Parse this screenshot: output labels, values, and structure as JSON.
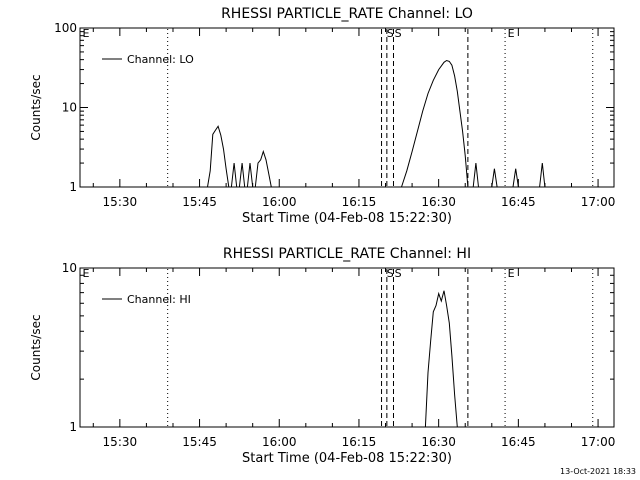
{
  "chart_data": [
    {
      "type": "line",
      "title": "RHESSI PARTICLE_RATE Channel: LO",
      "xlabel": "Start Time (04-Feb-08 15:22:30)",
      "ylabel": "Counts/sec",
      "y_scale": "log",
      "ylim": [
        1,
        100
      ],
      "ytick_labels": [
        "1",
        "10",
        "100"
      ],
      "xlim": [
        "15:22:30",
        "17:03:00"
      ],
      "xtick_labels": [
        "15:30",
        "15:45",
        "16:00",
        "16:15",
        "16:30",
        "16:45",
        "17:00"
      ],
      "grid": false,
      "legend": {
        "placement": "top-left",
        "label": "Channel: LO"
      },
      "annotations": [
        {
          "label": "E",
          "time": "15:22:30"
        },
        {
          "label": "S",
          "time": "16:19:45"
        },
        {
          "label": "S",
          "time": "16:21:15"
        },
        {
          "label": "E",
          "time": "16:42:30"
        }
      ],
      "vertical_markers": [
        {
          "style": "dotted",
          "time": "15:39:00"
        },
        {
          "style": "dashed",
          "time": "16:19:15"
        },
        {
          "style": "dashed",
          "time": "16:20:15"
        },
        {
          "style": "dashed",
          "time": "16:21:30"
        },
        {
          "style": "dashed",
          "time": "16:35:30"
        },
        {
          "style": "dotted",
          "time": "16:42:30"
        },
        {
          "style": "dotted",
          "time": "16:59:00"
        }
      ],
      "series": [
        {
          "name": "Channel: LO",
          "segments": [
            {
              "x": [
                "15:46:30",
                "15:47:00",
                "15:47:30",
                "15:48:00",
                "15:48:30",
                "15:49:00",
                "15:49:30",
                "15:50:00",
                "15:50:30"
              ],
              "y": [
                1,
                1.6,
                4.6,
                5.2,
                5.8,
                4.5,
                3,
                1.7,
                1
              ]
            },
            {
              "x": [
                "15:51:00",
                "15:51:30",
                "15:52:00"
              ],
              "y": [
                1,
                2,
                1
              ]
            },
            {
              "x": [
                "15:52:30",
                "15:53:00",
                "15:53:30"
              ],
              "y": [
                1,
                2,
                1
              ]
            },
            {
              "x": [
                "15:54:00",
                "15:54:30",
                "15:55:00"
              ],
              "y": [
                1,
                2,
                1
              ]
            },
            {
              "x": [
                "15:55:30",
                "15:56:00",
                "15:56:30",
                "15:57:00",
                "15:57:30",
                "15:58:00",
                "15:58:30"
              ],
              "y": [
                1,
                2,
                2.2,
                2.8,
                2.2,
                1.5,
                1
              ]
            },
            {
              "x": [
                "16:23:00",
                "16:24:00",
                "16:25:00",
                "16:26:00",
                "16:27:00",
                "16:28:00",
                "16:29:00",
                "16:30:00",
                "16:31:00",
                "16:31:30",
                "16:32:00",
                "16:32:30",
                "16:33:00",
                "16:33:30",
                "16:34:00",
                "16:34:30",
                "16:35:00",
                "16:35:30"
              ],
              "y": [
                1,
                1.6,
                2.8,
                5,
                9,
                15,
                22,
                30,
                37,
                39,
                38,
                34,
                25,
                16,
                9,
                5,
                2.5,
                1
              ]
            },
            {
              "x": [
                "16:36:30",
                "16:37:00",
                "16:37:30"
              ],
              "y": [
                1,
                2,
                1
              ]
            },
            {
              "x": [
                "16:40:00",
                "16:40:30",
                "16:41:00"
              ],
              "y": [
                1,
                1.7,
                1
              ]
            },
            {
              "x": [
                "16:44:00",
                "16:44:30",
                "16:45:00"
              ],
              "y": [
                1,
                1.7,
                1
              ]
            },
            {
              "x": [
                "16:49:00",
                "16:49:30",
                "16:50:00"
              ],
              "y": [
                1,
                2,
                1
              ]
            }
          ]
        }
      ]
    },
    {
      "type": "line",
      "title": "RHESSI PARTICLE_RATE Channel: HI",
      "xlabel": "Start Time (04-Feb-08 15:22:30)",
      "ylabel": "Counts/sec",
      "y_scale": "log",
      "ylim": [
        1,
        10
      ],
      "ytick_labels": [
        "1",
        "10"
      ],
      "xlim": [
        "15:22:30",
        "17:03:00"
      ],
      "xtick_labels": [
        "15:30",
        "15:45",
        "16:00",
        "16:15",
        "16:30",
        "16:45",
        "17:00"
      ],
      "grid": false,
      "legend": {
        "placement": "top-left",
        "label": "Channel: HI"
      },
      "annotations": [
        {
          "label": "E",
          "time": "15:22:30"
        },
        {
          "label": "S",
          "time": "16:19:45"
        },
        {
          "label": "S",
          "time": "16:21:15"
        },
        {
          "label": "E",
          "time": "16:42:30"
        }
      ],
      "vertical_markers": [
        {
          "style": "dotted",
          "time": "15:39:00"
        },
        {
          "style": "dashed",
          "time": "16:19:15"
        },
        {
          "style": "dashed",
          "time": "16:20:15"
        },
        {
          "style": "dashed",
          "time": "16:21:30"
        },
        {
          "style": "dashed",
          "time": "16:35:30"
        },
        {
          "style": "dotted",
          "time": "16:42:30"
        },
        {
          "style": "dotted",
          "time": "16:59:00"
        }
      ],
      "series": [
        {
          "name": "Channel: HI",
          "segments": [
            {
              "x": [
                "16:27:30",
                "16:28:00",
                "16:28:30",
                "16:29:00",
                "16:29:30",
                "16:30:00",
                "16:30:30",
                "16:31:00",
                "16:31:30",
                "16:32:00",
                "16:32:30",
                "16:33:00",
                "16:33:30"
              ],
              "y": [
                1,
                2.2,
                3.5,
                5.3,
                5.8,
                6.9,
                6.2,
                7.2,
                5.8,
                4.5,
                2.8,
                1.6,
                1
              ]
            }
          ]
        }
      ]
    }
  ],
  "footer": {
    "timestamp": "13-Oct-2021 18:33"
  }
}
